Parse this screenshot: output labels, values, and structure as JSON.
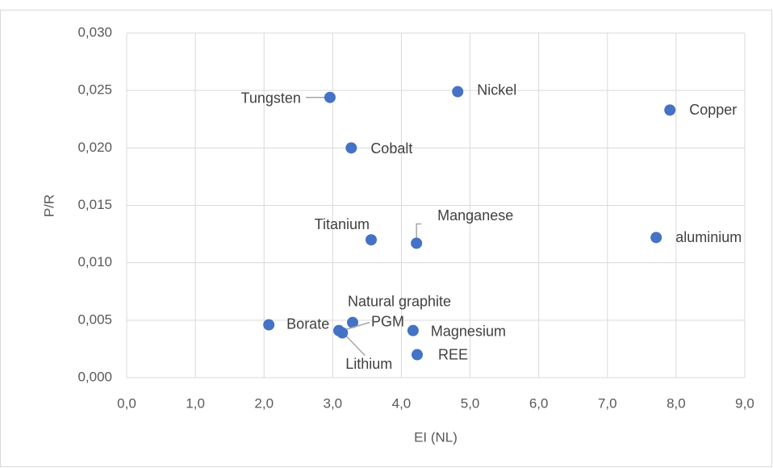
{
  "chart_data": {
    "type": "scatter",
    "x_label": "EI (NL)",
    "y_label": "P/R",
    "color": "#4472c4",
    "grid": true,
    "point_labels": [
      "Tungsten",
      "Nickel",
      "Copper",
      "Cobalt",
      "Titanium",
      "Manganese",
      "aluminium",
      "Natural graphite",
      "Borate",
      "PGM",
      "Lithium",
      "Magnesium",
      "REE"
    ],
    "x": [
      2.96,
      4.82,
      7.91,
      3.27,
      3.56,
      4.22,
      7.71,
      3.29,
      2.07,
      3.09,
      3.14,
      4.17,
      4.23
    ],
    "values": [
      0.0244,
      0.0249,
      0.0233,
      0.02,
      0.012,
      0.0117,
      0.0122,
      0.0048,
      0.0046,
      0.0041,
      0.0039,
      0.0041,
      0.002
    ],
    "xlim": [
      0,
      9
    ],
    "ylim": [
      0,
      0.03
    ],
    "xticks": [
      {
        "value": 0,
        "label": "0,0"
      },
      {
        "value": 1,
        "label": "1,0"
      },
      {
        "value": 2,
        "label": "2,0"
      },
      {
        "value": 3,
        "label": "3,0"
      },
      {
        "value": 4,
        "label": "4,0"
      },
      {
        "value": 5,
        "label": "5,0"
      },
      {
        "value": 6,
        "label": "6,0"
      },
      {
        "value": 7,
        "label": "7,0"
      },
      {
        "value": 8,
        "label": "8,0"
      },
      {
        "value": 9,
        "label": "9,0"
      }
    ],
    "yticks": [
      {
        "value": 0,
        "label": "0,000"
      },
      {
        "value": 0.005,
        "label": "0,005"
      },
      {
        "value": 0.01,
        "label": "0,010"
      },
      {
        "value": 0.015,
        "label": "0,015"
      },
      {
        "value": 0.02,
        "label": "0,020"
      },
      {
        "value": 0.025,
        "label": "0,025"
      },
      {
        "value": 0.03,
        "label": "0,030"
      }
    ]
  }
}
